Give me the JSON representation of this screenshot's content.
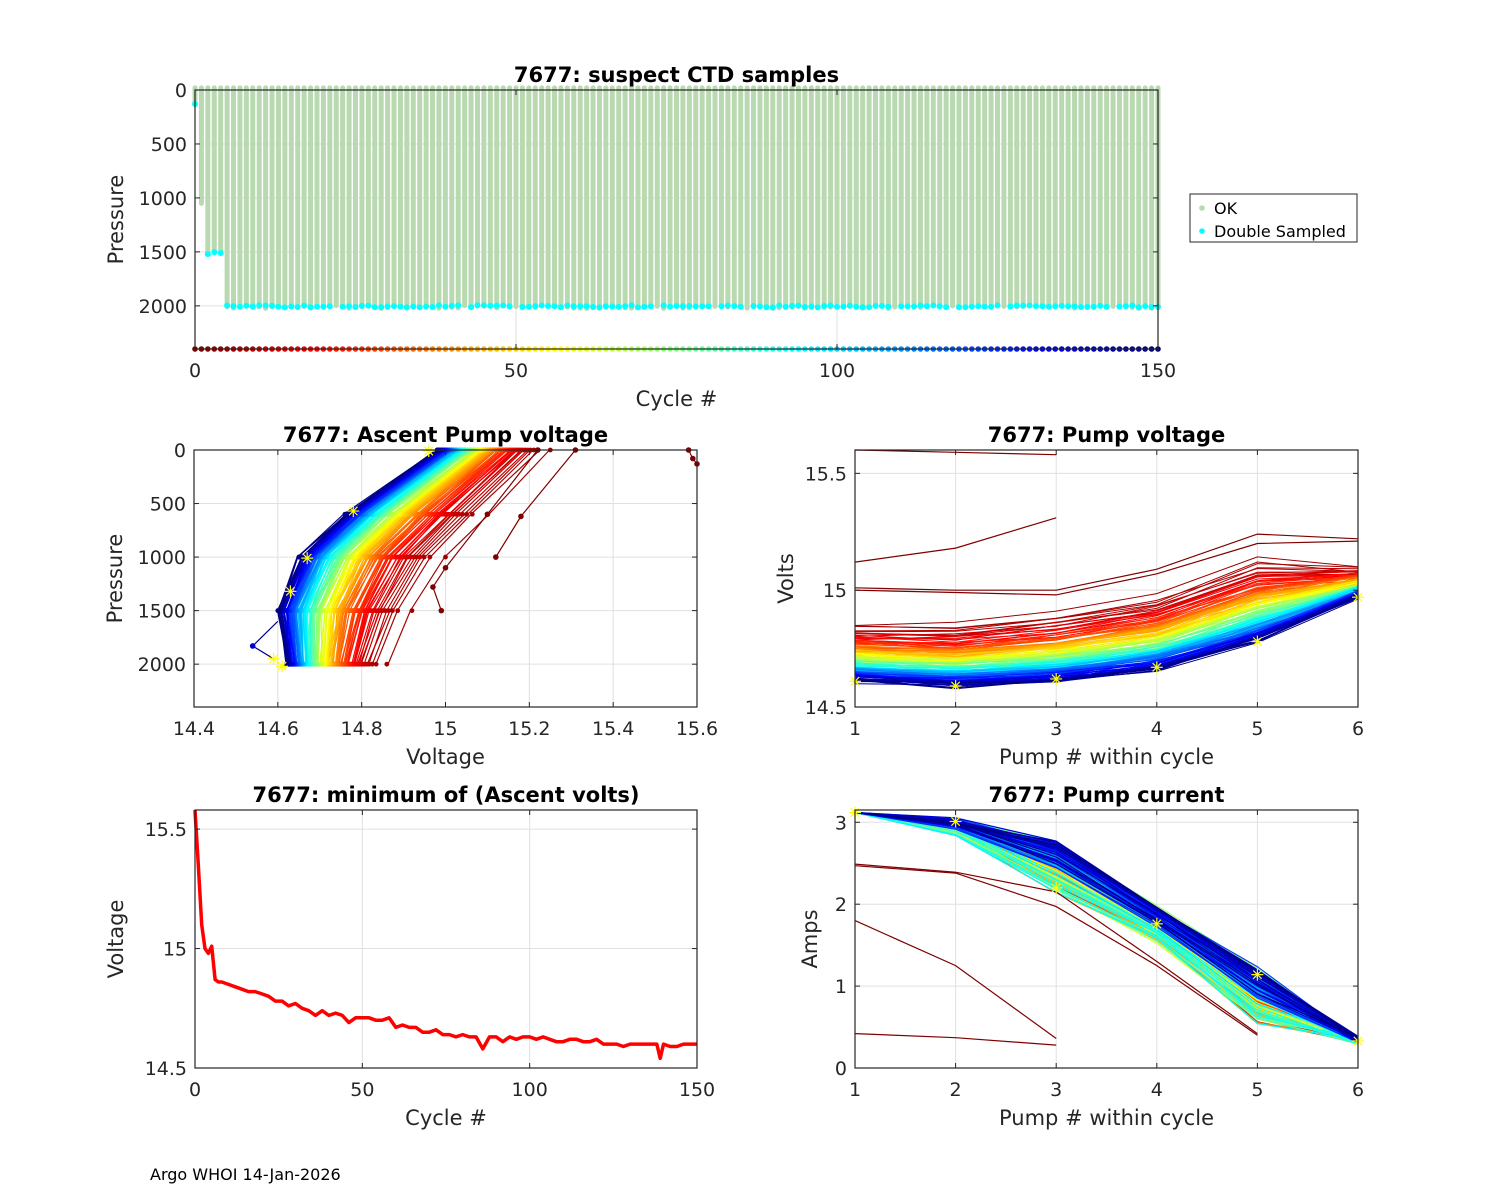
{
  "footer": "Argo WHOI 14-Jan-2026",
  "chart_data": [
    {
      "id": "suspect-ctd",
      "type": "scatter",
      "title": "7677: suspect CTD samples",
      "xlabel": "Cycle #",
      "ylabel": "Pressure",
      "xlim": [
        0,
        150
      ],
      "ylim": [
        0,
        2400
      ],
      "y_reversed": true,
      "xticks": [
        0,
        50,
        100,
        150
      ],
      "yticks": [
        0,
        500,
        1000,
        1500,
        2000
      ],
      "grid": true,
      "legend": {
        "position": "outside-right",
        "entries": [
          {
            "label": "OK",
            "color": "#b9d9b0"
          },
          {
            "label": "Double Sampled",
            "color": "#00ffff"
          }
        ]
      },
      "profiles": {
        "ok_color": "#b9d9b0",
        "double_color": "#00ffff",
        "cycle_depths": [
          {
            "cycle": 0,
            "max_pressure": 130,
            "double_sampled_at": 130
          },
          {
            "cycle": 1,
            "max_pressure": 1050,
            "double_sampled_at": null
          },
          {
            "cycle": 2,
            "max_pressure": 1520,
            "double_sampled_at": 1520
          },
          {
            "cycle": 3,
            "max_pressure": 1510,
            "double_sampled_at": 1510
          },
          {
            "cycle": 4,
            "max_pressure": 1515,
            "double_sampled_at": 1515
          }
        ],
        "default_cycles": {
          "from": 5,
          "to": 150,
          "max_pressure": 2010,
          "double_sampled_at": 2005
        }
      },
      "cycle_marker_row": {
        "pressure": 2400,
        "colormap": "jet-reversed",
        "cycles": [
          0,
          150
        ]
      }
    },
    {
      "id": "ascent-pump-voltage",
      "type": "line",
      "title": "7677: Ascent Pump voltage",
      "xlabel": "Voltage",
      "ylabel": "Pressure",
      "xlim": [
        14.4,
        15.6
      ],
      "ylim": [
        0,
        2400
      ],
      "y_reversed": true,
      "xticks": [
        14.4,
        14.6,
        14.8,
        15,
        15.2,
        15.4,
        15.6
      ],
      "xtick_labels": [
        "14.4",
        "14.6",
        "14.8",
        "15",
        "15.2",
        "15.4",
        "15.6"
      ],
      "yticks": [
        0,
        500,
        1000,
        1500,
        2000
      ],
      "grid": true,
      "colormap": "jet-reversed by cycle 0-150",
      "series_summary": {
        "newest_cycle_curve": [
          [
            14.55,
            1830
          ],
          [
            14.6,
            1400
          ],
          [
            14.65,
            1000
          ],
          [
            14.76,
            580
          ],
          [
            14.96,
            0
          ]
        ],
        "early_cycle_curve": [
          [
            14.86,
            2000
          ],
          [
            14.92,
            1500
          ],
          [
            15.0,
            1000
          ],
          [
            15.1,
            600
          ],
          [
            15.25,
            0
          ]
        ],
        "outlier_cycles": [
          {
            "points": [
              [
                15.12,
                1000
              ],
              [
                15.18,
                620
              ],
              [
                15.31,
                0
              ]
            ]
          },
          {
            "points": [
              [
                14.99,
                1500
              ],
              [
                14.97,
                1280
              ],
              [
                15.0,
                1100
              ],
              [
                15.1,
                600
              ],
              [
                15.22,
                0
              ]
            ]
          },
          {
            "points": [
              [
                15.58,
                0
              ],
              [
                15.59,
                80
              ],
              [
                15.6,
                130
              ]
            ]
          }
        ],
        "highlight_stars": [
          [
            14.61,
            2020
          ],
          [
            14.59,
            1950
          ],
          [
            14.63,
            1320
          ],
          [
            14.67,
            1010
          ],
          [
            14.78,
            570
          ],
          [
            14.96,
            10
          ]
        ]
      }
    },
    {
      "id": "pump-voltage",
      "type": "line",
      "title": "7677: Pump voltage",
      "xlabel": "Pump # within cycle",
      "ylabel": "Volts",
      "xlim": [
        1,
        6
      ],
      "ylim": [
        14.5,
        15.6
      ],
      "xticks": [
        1,
        2,
        3,
        4,
        5,
        6
      ],
      "yticks": [
        14.5,
        15,
        15.5
      ],
      "ytick_labels": [
        "14.5",
        "15",
        "15.5"
      ],
      "grid": true,
      "colormap": "jet-reversed by cycle 0-150",
      "series_summary": {
        "early_outliers": [
          {
            "x": [
              1,
              2,
              3
            ],
            "y": [
              15.6,
              15.59,
              15.58
            ]
          },
          {
            "x": [
              1,
              2,
              3
            ],
            "y": [
              15.12,
              15.18,
              15.31
            ]
          },
          {
            "x": [
              1,
              2,
              3,
              4,
              5,
              6
            ],
            "y": [
              15.01,
              15.0,
              15.0,
              15.09,
              15.24,
              15.22
            ]
          },
          {
            "x": [
              1,
              2,
              3,
              4,
              5,
              6
            ],
            "y": [
              15.0,
              14.99,
              14.98,
              15.07,
              15.2,
              15.21
            ]
          }
        ],
        "band_old": {
          "x": [
            1,
            2,
            3,
            4,
            5,
            6
          ],
          "y": [
            14.86,
            14.85,
            14.9,
            14.98,
            15.14,
            15.1
          ]
        },
        "band_new": {
          "x": [
            1,
            2,
            3,
            4,
            5,
            6
          ],
          "y": [
            14.61,
            14.59,
            14.61,
            14.66,
            14.78,
            14.97
          ]
        },
        "highlight_stars": [
          [
            1,
            14.61
          ],
          [
            2,
            14.59
          ],
          [
            3,
            14.62
          ],
          [
            4,
            14.67
          ],
          [
            5,
            14.78
          ],
          [
            6,
            14.97
          ]
        ]
      }
    },
    {
      "id": "min-ascent-volts",
      "type": "line",
      "title": "7677: minimum of (Ascent volts)",
      "xlabel": "Cycle #",
      "ylabel": "Voltage",
      "xlim": [
        0,
        150
      ],
      "ylim": [
        14.5,
        15.58
      ],
      "xticks": [
        0,
        50,
        100,
        150
      ],
      "yticks": [
        14.5,
        15,
        15.5
      ],
      "ytick_labels": [
        "14.5",
        "15",
        "15.5"
      ],
      "grid": true,
      "line_color": "#ff0000",
      "x": [
        0,
        1,
        2,
        3,
        4,
        5,
        6,
        7,
        8,
        10,
        12,
        14,
        16,
        18,
        20,
        22,
        24,
        26,
        28,
        30,
        32,
        34,
        36,
        38,
        40,
        42,
        44,
        46,
        48,
        50,
        52,
        54,
        56,
        58,
        60,
        62,
        64,
        66,
        68,
        70,
        72,
        74,
        76,
        78,
        80,
        82,
        84,
        86,
        88,
        90,
        92,
        94,
        96,
        98,
        100,
        102,
        104,
        106,
        108,
        110,
        112,
        114,
        116,
        118,
        120,
        122,
        124,
        126,
        128,
        130,
        132,
        134,
        136,
        138,
        139,
        140,
        142,
        144,
        146,
        148,
        150
      ],
      "y": [
        15.58,
        15.35,
        15.1,
        15.0,
        14.98,
        15.01,
        14.87,
        14.86,
        14.86,
        14.85,
        14.84,
        14.83,
        14.82,
        14.82,
        14.81,
        14.8,
        14.78,
        14.78,
        14.76,
        14.77,
        14.75,
        14.74,
        14.72,
        14.74,
        14.72,
        14.73,
        14.72,
        14.69,
        14.71,
        14.71,
        14.71,
        14.7,
        14.7,
        14.71,
        14.67,
        14.68,
        14.67,
        14.67,
        14.65,
        14.65,
        14.66,
        14.64,
        14.64,
        14.63,
        14.64,
        14.63,
        14.63,
        14.58,
        14.63,
        14.63,
        14.61,
        14.63,
        14.62,
        14.63,
        14.63,
        14.62,
        14.63,
        14.62,
        14.61,
        14.61,
        14.62,
        14.62,
        14.61,
        14.61,
        14.62,
        14.6,
        14.6,
        14.6,
        14.59,
        14.6,
        14.6,
        14.6,
        14.6,
        14.6,
        14.54,
        14.6,
        14.59,
        14.59,
        14.6,
        14.6,
        14.6
      ]
    },
    {
      "id": "pump-current",
      "type": "line",
      "title": "7677: Pump current",
      "xlabel": "Pump # within cycle",
      "ylabel": "Amps",
      "xlim": [
        1,
        6
      ],
      "ylim": [
        0,
        3.15
      ],
      "xticks": [
        1,
        2,
        3,
        4,
        5,
        6
      ],
      "yticks": [
        0,
        1,
        2,
        3
      ],
      "grid": true,
      "colormap": "jet-reversed by cycle 0-150",
      "series_summary": {
        "early_outliers": [
          {
            "x": [
              1,
              2,
              3
            ],
            "y": [
              0.42,
              0.37,
              0.28
            ]
          },
          {
            "x": [
              1,
              2,
              3
            ],
            "y": [
              1.8,
              1.25,
              0.36
            ]
          },
          {
            "x": [
              1,
              2,
              3,
              4,
              5
            ],
            "y": [
              2.47,
              2.38,
              1.97,
              1.25,
              0.4
            ]
          },
          {
            "x": [
              1,
              2,
              3,
              4,
              5
            ],
            "y": [
              2.49,
              2.39,
              2.15,
              1.3,
              0.42
            ]
          }
        ],
        "band_low": {
          "x": [
            1,
            2,
            3,
            4,
            5,
            6
          ],
          "y": [
            3.12,
            2.86,
            2.15,
            1.55,
            0.55,
            0.33
          ]
        },
        "band_high": {
          "x": [
            1,
            2,
            3,
            4,
            5,
            6
          ],
          "y": [
            3.12,
            3.02,
            2.75,
            1.95,
            1.2,
            0.35
          ]
        },
        "highlight_stars": [
          [
            1,
            3.12
          ],
          [
            2,
            3.01
          ],
          [
            3,
            2.2
          ],
          [
            4,
            1.76
          ],
          [
            5,
            1.14
          ],
          [
            6,
            0.33
          ]
        ]
      }
    }
  ]
}
